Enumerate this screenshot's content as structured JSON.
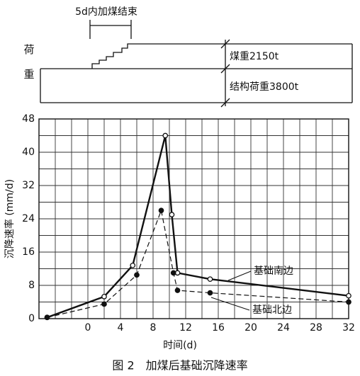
{
  "load_diagram": {
    "title": "5d内加煤结束",
    "axis_label": "荷重",
    "coal_label": "煤重2150t",
    "structure_label": "结构荷重3800t"
  },
  "chart_data": {
    "type": "line",
    "title": "图 2　加煤后基础沉降速率",
    "x_label": "时间(d)",
    "y_label": "沉降速率 (mm/d)",
    "xlim": [
      -6,
      32
    ],
    "xticks": [
      0,
      4,
      8,
      12,
      16,
      20,
      24,
      28,
      32
    ],
    "x_minor_ticks": [
      -4,
      -2,
      2,
      6,
      10,
      14,
      18,
      22,
      26,
      30
    ],
    "ylim": [
      0,
      48
    ],
    "yticks": [
      0,
      8,
      16,
      24,
      32,
      40,
      48
    ],
    "y_minor_ticks": [
      4,
      12,
      20,
      28,
      36,
      44
    ],
    "grid": true,
    "series": [
      {
        "name": "基础南边",
        "color": "#111111",
        "style": "solid",
        "marker": "open",
        "x": [
          -5,
          2,
          5.5,
          9.5,
          10.3,
          11,
          15,
          32
        ],
        "values": [
          0.3,
          5.3,
          12.8,
          44,
          25,
          11,
          9.5,
          5.5
        ]
      },
      {
        "name": "基础北边",
        "color": "#111111",
        "style": "dashed",
        "marker": "filled",
        "x": [
          -5,
          2,
          6,
          9,
          10.5,
          11,
          15,
          32
        ],
        "values": [
          0.3,
          3.5,
          10.5,
          26,
          11,
          6.8,
          6.2,
          4
        ]
      }
    ]
  }
}
